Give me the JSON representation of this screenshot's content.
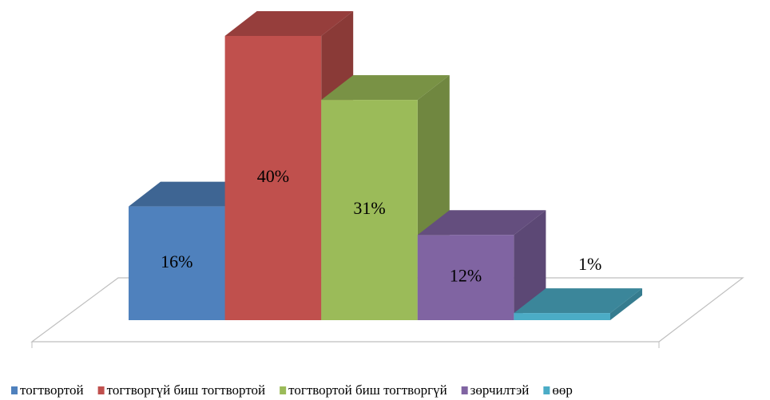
{
  "chart_data": {
    "type": "bar",
    "series": [
      {
        "name": "тогтвортой",
        "color": "#4f81bd",
        "values": [
          16
        ],
        "value_labels": [
          "16%"
        ]
      },
      {
        "name": "тогтворгүй биш тогтвортой",
        "color": "#c0504d",
        "values": [
          40
        ],
        "value_labels": [
          "40%"
        ]
      },
      {
        "name": "тогтвортой биш тогтворгүй",
        "color": "#9bbb59",
        "values": [
          31
        ],
        "value_labels": [
          "31%"
        ]
      },
      {
        "name": "зөрчилтэй",
        "color": "#8064a2",
        "values": [
          12
        ],
        "value_labels": [
          "12%"
        ]
      },
      {
        "name": "өөр",
        "color": "#4bacc6",
        "values": [
          1
        ],
        "value_labels": [
          "1%"
        ]
      }
    ],
    "legend": "bottom"
  }
}
